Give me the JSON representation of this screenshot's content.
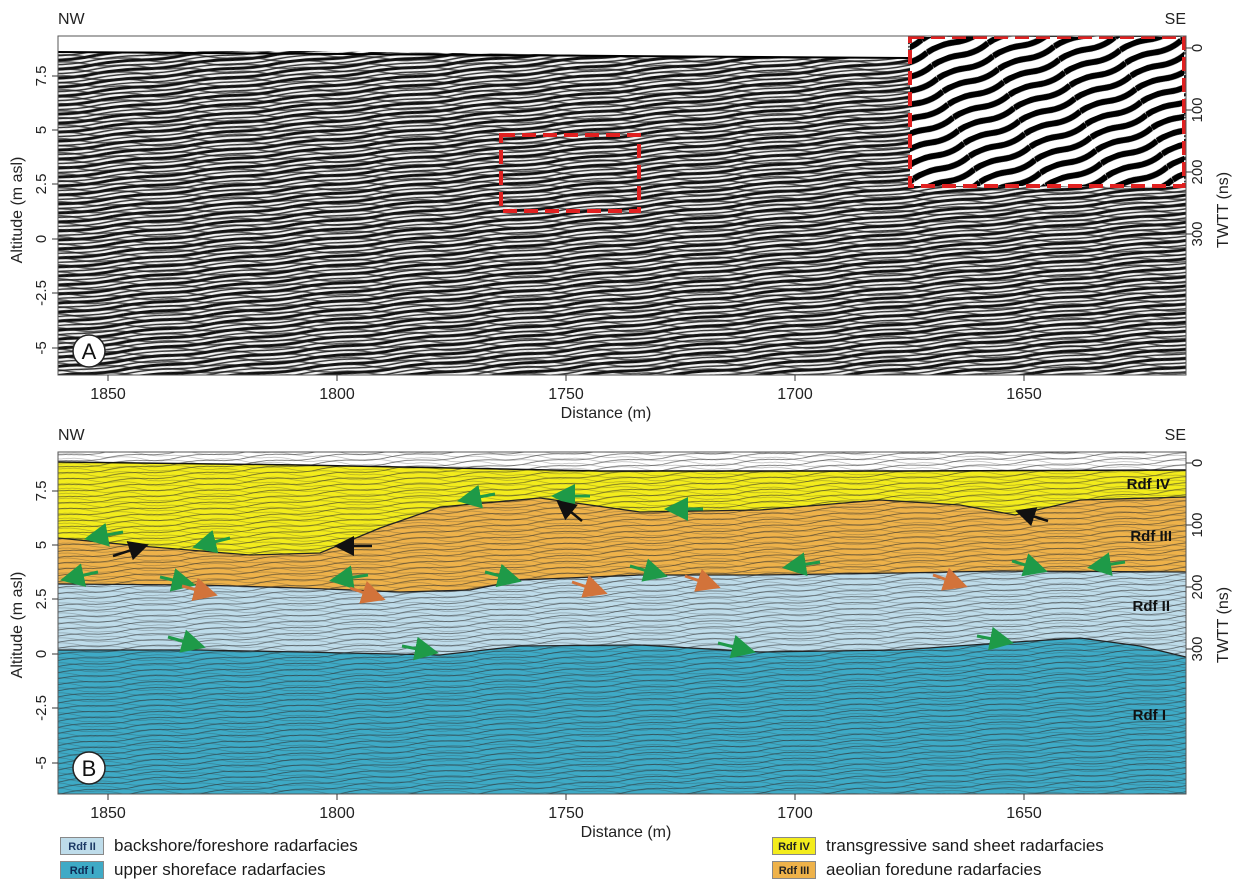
{
  "panels": [
    {
      "id": "A",
      "label": "A",
      "left_orientation": "NW",
      "right_orientation": "SE",
      "x_axis_label": "Distance (m)",
      "y_axis_label": "Altitude (m asl)",
      "y2_axis_label": "TWTT (ns)",
      "x_ticks": [
        "1850",
        "1800",
        "1750",
        "1700",
        "1650"
      ],
      "y_ticks": [
        "7.5",
        "5",
        "2.5",
        "0",
        "-2.5",
        "-5"
      ],
      "y2_ticks": [
        "0",
        "100",
        "200",
        "300"
      ]
    },
    {
      "id": "B",
      "label": "B",
      "left_orientation": "NW",
      "right_orientation": "SE",
      "x_axis_label": "Distance (m)",
      "y_axis_label": "Altitude (m asl)",
      "y2_axis_label": "TWTT (ns)",
      "x_ticks": [
        "1850",
        "1800",
        "1750",
        "1700",
        "1650"
      ],
      "y_ticks": [
        "7.5",
        "5",
        "2.5",
        "0",
        "-2.5",
        "-5"
      ],
      "y2_ticks": [
        "0",
        "100",
        "200",
        "300"
      ],
      "unit_labels": [
        "Rdf IV",
        "Rdf III",
        "Rdf II",
        "Rdf I"
      ]
    }
  ],
  "colors": {
    "rdf_iv": "#f3ec1c",
    "rdf_iii": "#eeb24a",
    "rdf_ii": "#bedcea",
    "rdf_i": "#3eaac6",
    "arrow_green": "#1e9a48",
    "arrow_orange": "#d2733a",
    "arrow_black": "#111111",
    "inset_border": "#e02020"
  },
  "legend": [
    {
      "code": "Rdf II",
      "text": "backshore/foreshore radarfacies",
      "color": "#bedcea"
    },
    {
      "code": "Rdf I",
      "text": "upper shoreface radarfacies",
      "color": "#3eaac6"
    },
    {
      "code": "Rdf IV",
      "text": "transgressive sand sheet radarfacies",
      "color": "#f3ec1c"
    },
    {
      "code": "Rdf III",
      "text": "aeolian foredune radarfacies",
      "color": "#eeb24a"
    }
  ]
}
